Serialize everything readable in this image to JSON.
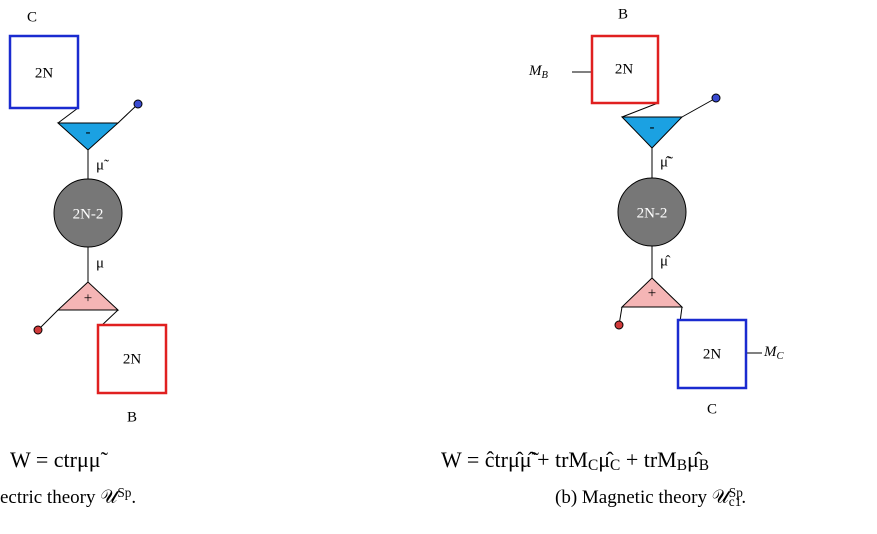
{
  "left": {
    "top_node": {
      "label": "C",
      "rank": "2N"
    },
    "top_vertex": "-",
    "upper_field": "μ̃",
    "center": "2N-2",
    "lower_field": "μ",
    "bottom_vertex": "+",
    "bottom_node": {
      "label": "B",
      "rank": "2N"
    },
    "superpotential": [
      {
        "text": "W = ctrμμ̃"
      }
    ],
    "caption": [
      {
        "text": "ectric theory 𝒰"
      },
      {
        "sup": "Sp"
      },
      {
        "text": "."
      }
    ]
  },
  "right": {
    "top_node": {
      "label": "B",
      "rank": "2N",
      "mass": [
        {
          "text": "M"
        },
        {
          "sub": "B"
        }
      ]
    },
    "top_vertex": "-",
    "upper_field": "μ̂̃",
    "center": "2N-2",
    "lower_field": "μ̂",
    "bottom_vertex": "+",
    "bottom_node": {
      "label": "C",
      "rank": "2N",
      "mass": [
        {
          "text": "M"
        },
        {
          "sub": "C"
        }
      ]
    },
    "superpotential": [
      {
        "text": "W = ĉtrμ̂μ̂̃ + trM"
      },
      {
        "sub": "C"
      },
      {
        "text": "μ̂"
      },
      {
        "sub": "C"
      },
      {
        "text": " + trM"
      },
      {
        "sub": "B"
      },
      {
        "text": "μ̂"
      },
      {
        "sub": "B"
      }
    ],
    "caption": [
      {
        "text": "(b) Magnetic theory 𝒰"
      },
      {
        "sup": "Sp"
      },
      {
        "sub": "c1"
      },
      {
        "text": "."
      }
    ]
  }
}
